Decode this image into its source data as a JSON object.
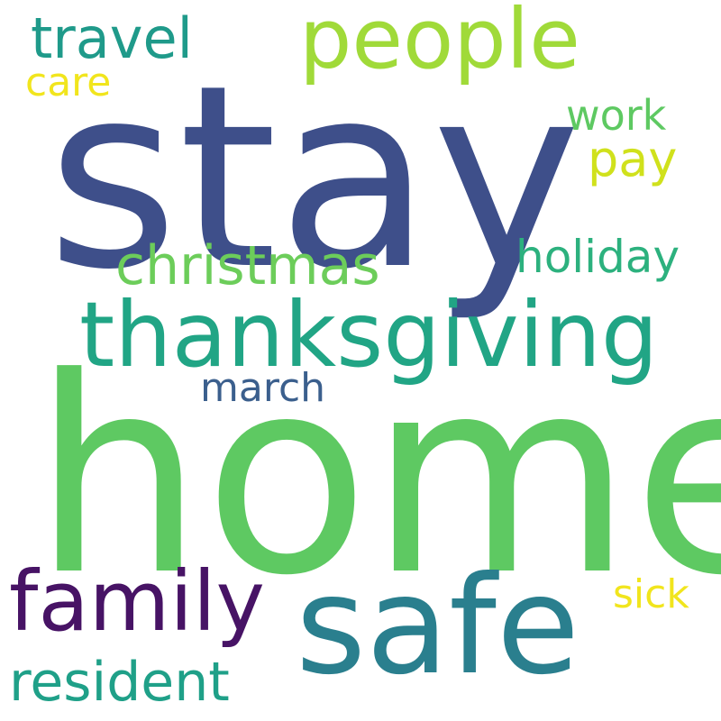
{
  "words": [
    {
      "id": "stay",
      "text": "stay",
      "color": "#3e4f8a"
    },
    {
      "id": "home",
      "text": "home",
      "color": "#5ec962"
    },
    {
      "id": "thanksgiving",
      "text": "thanksgiving",
      "color": "#21a585"
    },
    {
      "id": "people",
      "text": "people",
      "color": "#a0da39"
    },
    {
      "id": "safe",
      "text": "safe",
      "color": "#2a7f8e"
    },
    {
      "id": "family",
      "text": "family",
      "color": "#471365"
    },
    {
      "id": "christmas",
      "text": "christmas",
      "color": "#6ccd5a"
    },
    {
      "id": "travel",
      "text": "travel",
      "color": "#1f9a8a"
    },
    {
      "id": "holiday",
      "text": "holiday",
      "color": "#2cb17e"
    },
    {
      "id": "resident",
      "text": "resident",
      "color": "#1fa088"
    },
    {
      "id": "pay",
      "text": "pay",
      "color": "#d0e11c"
    },
    {
      "id": "work",
      "text": "work",
      "color": "#5ec962"
    },
    {
      "id": "march",
      "text": "march",
      "color": "#3b5f8d"
    },
    {
      "id": "care",
      "text": "care",
      "color": "#f1e51d"
    },
    {
      "id": "sick",
      "text": "sick",
      "color": "#f1e51d"
    }
  ]
}
